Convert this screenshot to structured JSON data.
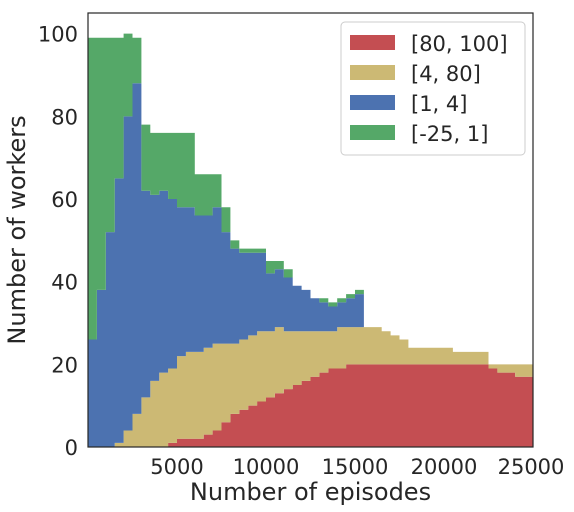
{
  "chart_data": {
    "type": "area",
    "stacked": true,
    "step": true,
    "xlabel": "Number of episodes",
    "ylabel": "Number of workers",
    "xlim": [
      0,
      25000
    ],
    "ylim": [
      0,
      105
    ],
    "xticks": [
      5000,
      10000,
      15000,
      20000,
      25000
    ],
    "yticks": [
      0,
      20,
      40,
      60,
      80,
      100
    ],
    "grid": false,
    "legend_position": "top-right",
    "x": [
      0,
      500,
      1000,
      1500,
      2000,
      2500,
      3000,
      3500,
      4000,
      4500,
      5000,
      5500,
      6000,
      6500,
      7000,
      7500,
      8000,
      8500,
      9000,
      9500,
      10000,
      10500,
      11000,
      11500,
      12000,
      12500,
      13000,
      13500,
      14000,
      14500,
      15000,
      15500,
      16000,
      16500,
      17000,
      17500,
      18000,
      18500,
      19000,
      19500,
      20000,
      20500,
      21000,
      21500,
      22000,
      22500,
      23000,
      23500,
      24000,
      24500,
      25000
    ],
    "series": [
      {
        "name": "[80, 100]",
        "color": "#c44e52",
        "values": [
          0,
          0,
          0,
          0,
          0,
          0,
          0,
          0,
          0,
          1,
          2,
          2,
          2,
          3,
          4,
          6,
          8,
          9,
          10,
          11,
          12,
          13,
          14,
          15,
          16,
          17,
          18,
          19,
          19,
          20,
          20,
          20,
          20,
          20,
          20,
          20,
          20,
          20,
          20,
          20,
          20,
          20,
          20,
          20,
          20,
          19,
          18,
          18,
          17,
          17,
          17
        ]
      },
      {
        "name": "[4, 80]",
        "color": "#ccb974",
        "values": [
          0,
          0,
          0,
          1,
          4,
          8,
          12,
          16,
          18,
          18,
          20,
          21,
          21,
          21,
          21,
          19,
          17,
          17,
          17,
          17,
          16,
          16,
          14,
          13,
          12,
          11,
          10,
          9,
          10,
          9,
          9,
          9,
          9,
          8,
          7,
          6,
          4,
          4,
          4,
          4,
          4,
          3,
          3,
          3,
          3,
          1,
          2,
          2,
          3,
          3,
          3
        ]
      },
      {
        "name": "[1, 4]",
        "color": "#4c72b0",
        "values": [
          26,
          38,
          52,
          64,
          76,
          80,
          50,
          45,
          44,
          41,
          36,
          35,
          33,
          32,
          33,
          27,
          23,
          21,
          20,
          19,
          14,
          14,
          13,
          11,
          10,
          8,
          7,
          6,
          6,
          7,
          8,
          0,
          0,
          0,
          0,
          0,
          0,
          0,
          0,
          0,
          0,
          0,
          0,
          0,
          0,
          0,
          0,
          0,
          0,
          0,
          0
        ]
      },
      {
        "name": "[-25, 1]",
        "color": "#55a868",
        "values": [
          73,
          61,
          47,
          34,
          20,
          11,
          16,
          15,
          14,
          16,
          18,
          18,
          10,
          10,
          8,
          6,
          2,
          1,
          1,
          1,
          3,
          2,
          2,
          0,
          0,
          0,
          1,
          1,
          1,
          1,
          1,
          0,
          0,
          0,
          0,
          0,
          0,
          0,
          0,
          0,
          0,
          0,
          0,
          0,
          0,
          0,
          0,
          0,
          0,
          0,
          0
        ]
      }
    ]
  }
}
